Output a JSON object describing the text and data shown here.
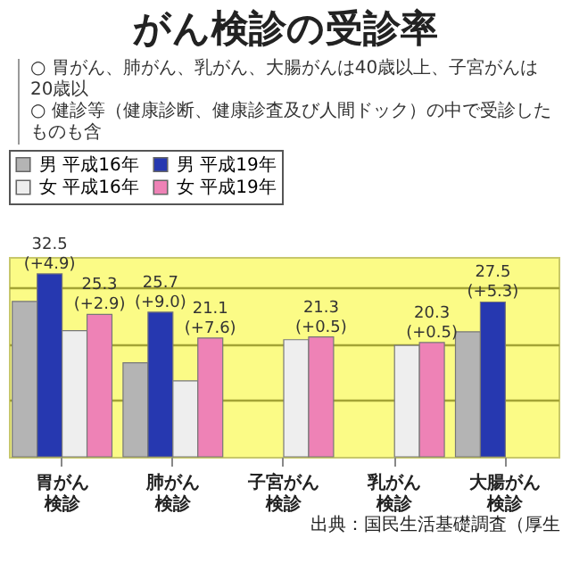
{
  "chart_data": {
    "type": "bar",
    "title": "がん検診の受診率",
    "annotations": [
      "○ 胃がん、肺がん、乳がん、大腸がんは40歳以上、子宮がんは20歳以",
      "○ 健診等（健康診断、健康診査及び人間ドック）の中で受診したものも含",
      "出典：国民生活基礎調査（厚生"
    ],
    "categories": [
      "胃がん検診",
      "肺がん検診",
      "子宮がん検診",
      "乳がん検診",
      "大腸がん検診"
    ],
    "series": [
      {
        "name": "男 平成16年",
        "color": "#b4b4b4",
        "values": [
          27.6,
          16.7,
          null,
          null,
          22.2
        ]
      },
      {
        "name": "男 平成19年",
        "color": "#2638b0",
        "values": [
          32.5,
          25.7,
          null,
          null,
          27.5
        ],
        "value_labels": [
          "32.5\n(+4.9)",
          "25.7\n(+9.0)",
          null,
          null,
          "27.5\n(+5.3)"
        ]
      },
      {
        "name": "女 平成16年",
        "color": "#eeeeee",
        "values": [
          22.4,
          13.5,
          20.8,
          19.8,
          null
        ]
      },
      {
        "name": "女 平成19年",
        "color": "#ee82b6",
        "values": [
          25.3,
          21.1,
          21.3,
          20.3,
          null
        ],
        "value_labels": [
          "25.3\n(+2.9)",
          "21.1\n(+7.6)",
          "21.3\n(+0.5)",
          "20.3\n(+0.5)",
          null
        ]
      }
    ],
    "ylim": [
      0,
      35.5
    ],
    "yticks": [
      {
        "value": 10,
        "label": null
      },
      {
        "value": 20,
        "label": null
      },
      {
        "value": 30,
        "label": null
      }
    ],
    "grid": "y",
    "legend": "top",
    "tick_labels": "x"
  }
}
